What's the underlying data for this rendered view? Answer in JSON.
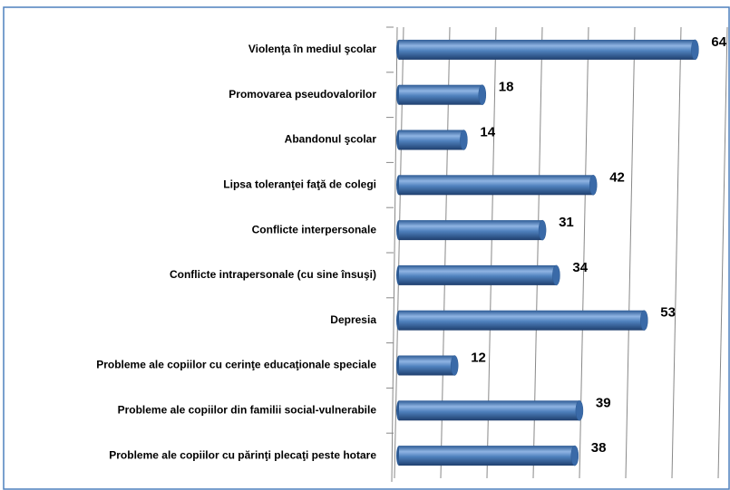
{
  "chart_data": {
    "type": "bar",
    "orientation": "horizontal",
    "categories": [
      "Violenţa în mediul şcolar",
      "Promovarea pseudovalorilor",
      "Abandonul şcolar",
      "Lipsa toleranţei faţă de colegi",
      "Conflicte interpersonale",
      "Conflicte intrapersonale (cu sine însuşi)",
      "Depresia",
      "Probleme ale copiilor cu cerinţe educaţionale speciale",
      "Probleme ale copiilor din familii social-vulnerabile",
      "Probleme ale copiilor cu părinţi plecaţi peste hotare"
    ],
    "values": [
      64,
      18,
      14,
      42,
      31,
      34,
      53,
      12,
      39,
      38
    ],
    "color": "#4f81bd",
    "xlim": [
      0,
      70
    ],
    "xticks": [
      0,
      10,
      20,
      30,
      40,
      50,
      60,
      70
    ],
    "grid": true
  }
}
